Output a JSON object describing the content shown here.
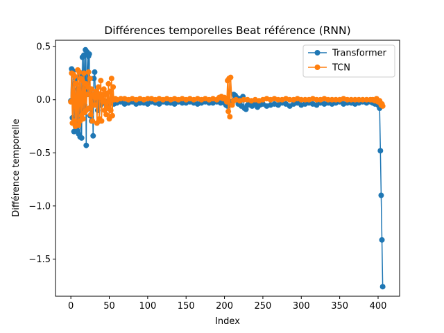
{
  "chart_data": {
    "type": "line",
    "title": "Différences temporelles Beat référence (RNN)",
    "xlabel": "Index",
    "ylabel": "Différence temporelle",
    "xlim": [
      -20,
      428
    ],
    "ylim": [
      -1.85,
      0.56
    ],
    "xticks": [
      0,
      50,
      100,
      150,
      200,
      250,
      300,
      350,
      400
    ],
    "yticks": [
      -1.5,
      -1.0,
      -0.5,
      0.0,
      0.5
    ],
    "ytick_labels": [
      "−1.5",
      "−1.0",
      "−0.5",
      "0.0",
      "0.5"
    ],
    "grid": false,
    "legend": "top-right",
    "series": [
      {
        "name": "Transformer",
        "color": "#1f77b4",
        "marker": "circle",
        "x": [
          0,
          1,
          2,
          3,
          4,
          5,
          6,
          7,
          8,
          9,
          10,
          11,
          12,
          13,
          14,
          15,
          16,
          17,
          18,
          19,
          20,
          21,
          22,
          23,
          24,
          25,
          26,
          27,
          28,
          29,
          30,
          31,
          32,
          33,
          34,
          35,
          36,
          37,
          38,
          39,
          40,
          42,
          45,
          48,
          50,
          53,
          56,
          60,
          65,
          70,
          75,
          80,
          85,
          90,
          95,
          100,
          105,
          110,
          115,
          120,
          125,
          130,
          135,
          140,
          145,
          150,
          155,
          160,
          165,
          170,
          175,
          180,
          185,
          190,
          195,
          198,
          200,
          202,
          204,
          206,
          208,
          210,
          212,
          214,
          216,
          218,
          220,
          222,
          224,
          226,
          228,
          230,
          232,
          234,
          236,
          238,
          240,
          243,
          246,
          250,
          255,
          260,
          265,
          270,
          275,
          280,
          285,
          290,
          295,
          300,
          305,
          310,
          315,
          320,
          325,
          330,
          335,
          340,
          345,
          350,
          355,
          360,
          365,
          370,
          375,
          380,
          385,
          390,
          393,
          396,
          398,
          400,
          402,
          403,
          404,
          405,
          406
        ],
        "y": [
          -0.01,
          0.29,
          -0.17,
          0.27,
          -0.3,
          0.15,
          -0.25,
          0.2,
          -0.29,
          0.1,
          -0.32,
          0.22,
          -0.35,
          0.25,
          -0.36,
          0.4,
          -0.1,
          0.42,
          -0.05,
          0.47,
          -0.43,
          0.45,
          0.05,
          0.41,
          0.43,
          -0.15,
          0.1,
          -0.2,
          0.05,
          -0.34,
          0.2,
          0.26,
          0.04,
          -0.05,
          0.02,
          -0.1,
          0.03,
          -0.2,
          0.0,
          -0.05,
          0.02,
          -0.03,
          -0.02,
          -0.04,
          -0.01,
          -0.03,
          -0.04,
          -0.03,
          -0.02,
          -0.04,
          -0.03,
          -0.02,
          -0.04,
          -0.03,
          -0.03,
          -0.04,
          -0.02,
          -0.03,
          -0.04,
          -0.02,
          -0.03,
          -0.03,
          -0.04,
          -0.02,
          -0.03,
          -0.03,
          -0.02,
          -0.03,
          -0.04,
          -0.03,
          -0.02,
          -0.03,
          -0.03,
          -0.02,
          -0.03,
          -0.02,
          -0.03,
          -0.05,
          -0.06,
          -0.04,
          -0.02,
          -0.03,
          0.05,
          0.04,
          0.02,
          -0.04,
          0.01,
          -0.06,
          0.03,
          -0.08,
          -0.09,
          -0.05,
          -0.03,
          -0.05,
          -0.06,
          -0.04,
          -0.03,
          -0.07,
          -0.05,
          -0.04,
          -0.06,
          -0.05,
          -0.04,
          -0.05,
          -0.03,
          -0.04,
          -0.06,
          -0.04,
          -0.03,
          -0.05,
          -0.04,
          -0.03,
          -0.04,
          -0.05,
          -0.03,
          -0.04,
          -0.03,
          -0.04,
          -0.03,
          -0.02,
          -0.04,
          -0.03,
          -0.03,
          -0.04,
          -0.03,
          -0.02,
          -0.03,
          -0.02,
          -0.03,
          -0.04,
          -0.03,
          -0.05,
          -0.08,
          -0.48,
          -0.9,
          -1.32,
          -1.76
        ]
      },
      {
        "name": "TCN",
        "color": "#ff7f0e",
        "marker": "circle",
        "x": [
          0,
          1,
          2,
          3,
          4,
          5,
          6,
          7,
          8,
          9,
          10,
          11,
          12,
          13,
          14,
          15,
          16,
          17,
          18,
          19,
          20,
          21,
          22,
          23,
          24,
          25,
          26,
          27,
          28,
          29,
          30,
          31,
          32,
          33,
          34,
          35,
          36,
          37,
          38,
          39,
          40,
          41,
          42,
          43,
          44,
          45,
          46,
          47,
          48,
          49,
          50,
          51,
          52,
          53,
          54,
          55,
          56,
          58,
          60,
          65,
          70,
          75,
          80,
          85,
          90,
          95,
          100,
          105,
          110,
          115,
          120,
          125,
          130,
          135,
          140,
          145,
          150,
          155,
          160,
          165,
          170,
          175,
          180,
          185,
          190,
          193,
          196,
          198,
          200,
          202,
          203,
          204,
          205,
          206,
          207,
          208,
          210,
          212,
          215,
          220,
          225,
          230,
          235,
          240,
          245,
          250,
          255,
          260,
          265,
          270,
          275,
          280,
          285,
          290,
          295,
          300,
          305,
          310,
          315,
          320,
          325,
          330,
          335,
          340,
          345,
          350,
          355,
          360,
          365,
          370,
          375,
          380,
          385,
          390,
          393,
          396,
          398,
          400,
          402,
          403,
          404,
          405,
          406
        ],
        "y": [
          -0.02,
          0.25,
          -0.22,
          0.24,
          -0.2,
          0.22,
          -0.25,
          0.15,
          -0.24,
          0.28,
          -0.24,
          0.26,
          -0.2,
          0.2,
          -0.15,
          0.18,
          -0.18,
          0.25,
          -0.12,
          0.15,
          -0.1,
          0.05,
          0.12,
          0.26,
          -0.08,
          0.2,
          -0.14,
          0.1,
          -0.2,
          0.05,
          0.03,
          -0.05,
          0.02,
          0.08,
          -0.22,
          0.06,
          0.12,
          -0.18,
          0.02,
          0.18,
          -0.2,
          0.05,
          -0.02,
          0.1,
          -0.1,
          0.05,
          -0.14,
          0.06,
          -0.08,
          0.15,
          -0.18,
          0.08,
          -0.1,
          0.2,
          -0.15,
          0.12,
          0.0,
          0.01,
          0.0,
          0.01,
          0.01,
          0.0,
          0.01,
          0.0,
          0.01,
          0.0,
          0.01,
          0.01,
          0.0,
          0.01,
          0.0,
          0.01,
          0.0,
          0.01,
          0.0,
          0.01,
          0.0,
          0.01,
          0.0,
          0.01,
          0.0,
          0.01,
          0.0,
          0.01,
          0.0,
          0.02,
          0.03,
          0.01,
          0.02,
          0.0,
          -0.02,
          0.18,
          -0.11,
          0.2,
          -0.16,
          0.21,
          -0.05,
          -0.01,
          0.0,
          -0.01,
          0.0,
          0.0,
          -0.01,
          0.0,
          -0.01,
          0.0,
          0.01,
          0.0,
          0.01,
          0.0,
          0.0,
          0.01,
          0.0,
          0.0,
          0.01,
          0.0,
          0.0,
          0.0,
          0.01,
          0.0,
          0.0,
          0.01,
          0.0,
          0.0,
          0.0,
          0.0,
          0.01,
          0.0,
          0.0,
          0.0,
          0.0,
          0.0,
          0.0,
          0.0,
          0.0,
          -0.01,
          0.01,
          -0.02,
          -0.01,
          -0.03,
          -0.05,
          -0.04,
          -0.06
        ]
      }
    ]
  }
}
